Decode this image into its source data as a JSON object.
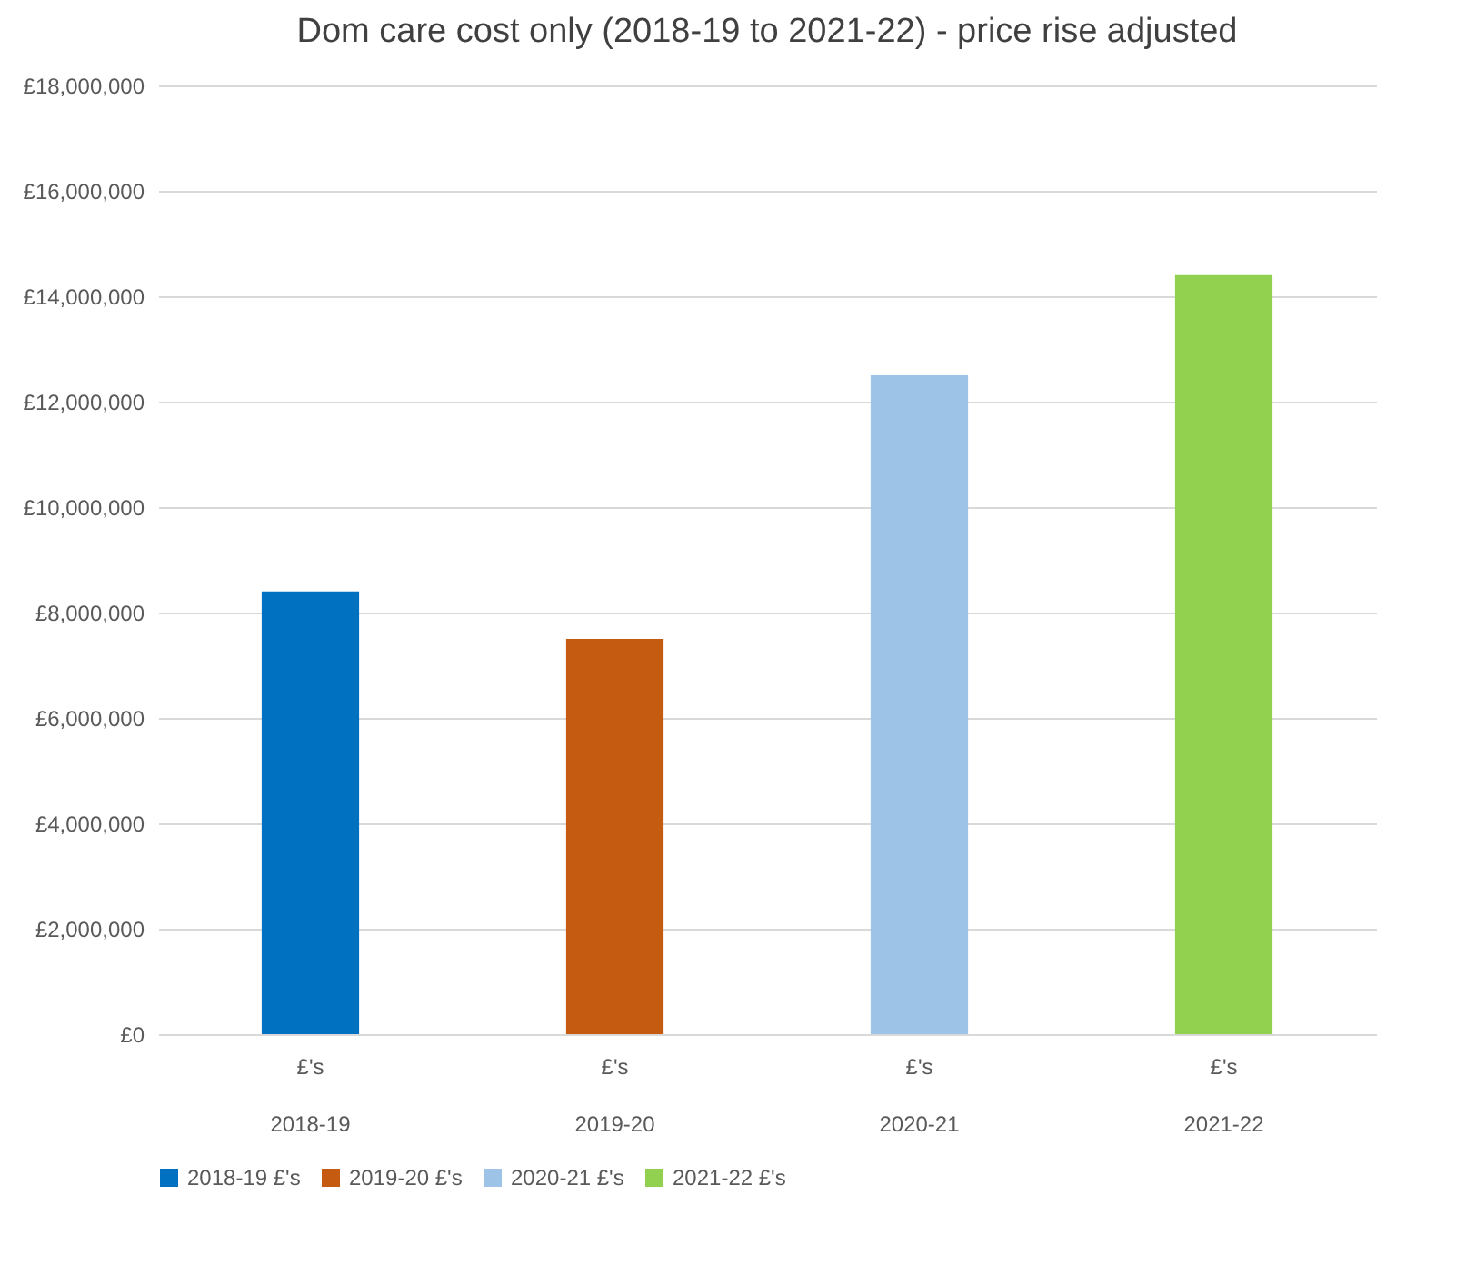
{
  "chart_data": {
    "type": "bar",
    "title": "Dom care cost only (2018-19 to 2021-22) - price rise adjusted",
    "categories": [
      "2018-19",
      "2019-20",
      "2020-21",
      "2021-22"
    ],
    "series": [
      {
        "name": "2018-19 £'s",
        "color": "#0070c0",
        "values": [
          8400000,
          null,
          null,
          null
        ]
      },
      {
        "name": "2019-20 £'s",
        "color": "#c55a11",
        "values": [
          null,
          7500000,
          null,
          null
        ]
      },
      {
        "name": "2020-21 £'s",
        "color": "#9dc3e6",
        "values": [
          null,
          null,
          12500000,
          null
        ]
      },
      {
        "name": "2021-22 £'s",
        "color": "#92d050",
        "values": [
          null,
          null,
          null,
          14400000
        ]
      }
    ],
    "annotations": [
      "£'s",
      "£'s",
      "£'s",
      "£'s"
    ],
    "ylim": [
      0,
      18000000
    ],
    "yticks": [
      {
        "value": 0,
        "label": "£0"
      },
      {
        "value": 2000000,
        "label": "£2,000,000"
      },
      {
        "value": 4000000,
        "label": "£4,000,000"
      },
      {
        "value": 6000000,
        "label": "£6,000,000"
      },
      {
        "value": 8000000,
        "label": "£8,000,000"
      },
      {
        "value": 10000000,
        "label": "£10,000,000"
      },
      {
        "value": 12000000,
        "label": "£12,000,000"
      },
      {
        "value": 14000000,
        "label": "£14,000,000"
      },
      {
        "value": 16000000,
        "label": "£16,000,000"
      },
      {
        "value": 18000000,
        "label": "£18,000,000"
      }
    ],
    "grid": true,
    "legend": "bottom"
  }
}
